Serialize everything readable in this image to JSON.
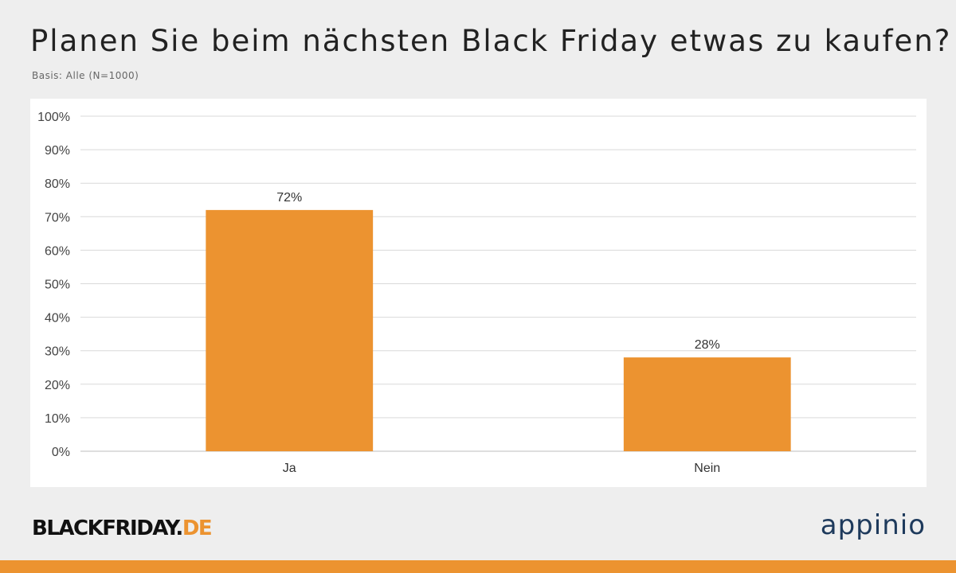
{
  "header": {
    "title": "Planen Sie beim nächsten Black Friday etwas zu kaufen?",
    "subtitle": "Basis: Alle (N=1000)"
  },
  "chart_data": {
    "type": "bar",
    "title": "Planen Sie beim nächsten Black Friday etwas zu kaufen?",
    "subtitle": "Basis: Alle (N=1000)",
    "categories": [
      "Ja",
      "Nein"
    ],
    "values": [
      72,
      28
    ],
    "data_labels": [
      "72%",
      "28%"
    ],
    "xlabel": "",
    "ylabel": "",
    "ylim": [
      0,
      100
    ],
    "yticks": [
      "0%",
      "10%",
      "20%",
      "30%",
      "40%",
      "50%",
      "60%",
      "70%",
      "80%",
      "90%",
      "100%"
    ],
    "grid": true,
    "legend": "none",
    "bar_color": "#ec9330"
  },
  "footer": {
    "logo_left_main": "BLACKFRIDAY.",
    "logo_left_accent": "DE",
    "logo_right": "appinio",
    "accent_color": "#ec9330",
    "brand_color": "#1e3a5c"
  }
}
